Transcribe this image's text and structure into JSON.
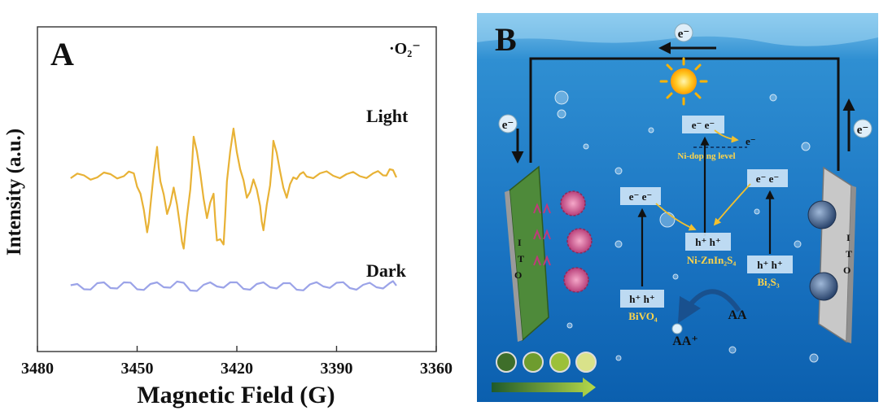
{
  "panel_a": {
    "label": "A",
    "radical": "·O₂⁻",
    "chart_data": {
      "type": "line",
      "title": "",
      "xlabel": "Magnetic Field (G)",
      "ylabel": "Intensity (a.u.)",
      "xlim": [
        3480,
        3360
      ],
      "x_reversed": true,
      "xticks": [
        "3480",
        "3450",
        "3420",
        "3390",
        "3360"
      ],
      "grid": false,
      "series": [
        {
          "name": "Light",
          "color": "#E8B236",
          "x": [
            3470,
            3466,
            3462,
            3458,
            3454,
            3451,
            3449,
            3447,
            3446,
            3444,
            3443,
            3441,
            3439,
            3437,
            3436,
            3434,
            3433,
            3431,
            3429,
            3427,
            3426,
            3424,
            3423,
            3421,
            3419,
            3417,
            3415,
            3413,
            3412,
            3410,
            3409,
            3407,
            3405,
            3403,
            3401,
            3399,
            3395,
            3391,
            3387,
            3383,
            3379,
            3376,
            3374,
            3372
          ],
          "y": [
            0.78,
            0.85,
            0.8,
            0.88,
            0.83,
            0.9,
            0.4,
            -0.55,
            0.1,
            1.55,
            0.7,
            -0.1,
            0.55,
            -0.45,
            -0.95,
            0.5,
            1.8,
            0.9,
            -0.2,
            0.4,
            -0.75,
            -0.85,
            0.7,
            2.0,
            1.0,
            0.3,
            0.75,
            0.1,
            -0.5,
            0.6,
            1.7,
            0.95,
            0.3,
            0.8,
            0.88,
            0.82,
            0.9,
            0.84,
            0.88,
            0.83,
            0.9,
            0.85,
            1.0,
            0.8
          ]
        },
        {
          "name": "Dark",
          "color": "#9BA3E8",
          "x": [
            3470,
            3466,
            3462,
            3458,
            3454,
            3450,
            3446,
            3442,
            3438,
            3434,
            3430,
            3426,
            3422,
            3418,
            3414,
            3410,
            3406,
            3402,
            3398,
            3394,
            3390,
            3386,
            3382,
            3378,
            3374,
            3372
          ],
          "y": [
            -1.85,
            -1.95,
            -1.8,
            -1.92,
            -1.78,
            -1.95,
            -1.82,
            -1.9,
            -1.76,
            -1.98,
            -1.84,
            -1.88,
            -1.78,
            -1.94,
            -1.82,
            -1.9,
            -1.8,
            -1.96,
            -1.83,
            -1.88,
            -1.79,
            -1.92,
            -1.84,
            -1.9,
            -1.8,
            -1.86
          ]
        }
      ]
    }
  },
  "panel_b": {
    "label": "B",
    "electron": "e⁻",
    "electron_pair": "e⁻ e⁻",
    "hole_pair": "h⁺ h⁺",
    "ni_doping_level": "Ni-doping level",
    "ito": [
      "I",
      "T",
      "O"
    ],
    "bivo4": "BiVO₄",
    "ni_znin2s4": "Ni-ZnIn₂S₄",
    "bi2s3": "Bi₂S₃",
    "aa": "AA",
    "aa_plus": "AA⁺",
    "colors": {
      "water_top": "#2a86c9",
      "water_bottom": "#0a63b3",
      "label_yellow": "#FFD54A",
      "band_box": "#cfe6f7",
      "green_electrode": "#4e8a3a",
      "grey_electrode": "#c8c8c8"
    }
  }
}
